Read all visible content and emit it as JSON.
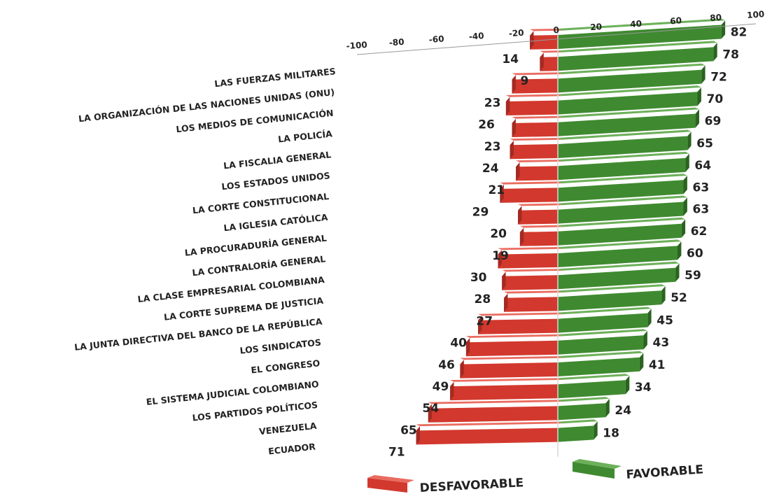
{
  "chart_data": {
    "type": "bar",
    "orientation": "horizontal-diverging",
    "categories": [
      "LAS FUERZAS MILITARES",
      "LA ORGANIZACIÓN DE LAS NACIONES UNIDAS (ONU)",
      "LOS MEDIOS DE COMUNICACIÓN",
      "LA POLICÍA",
      "LA FISCALIA GENERAL",
      "LOS ESTADOS UNIDOS",
      "LA CORTE CONSTITUCIONAL",
      "LA IGLESIA CATÓLICA",
      "LA PROCURADURÍA GENERAL",
      "LA CONTRALORÍA GENERAL",
      "LA CLASE EMPRESARIAL COLOMBIANA",
      "LA CORTE SUPREMA DE JUSTICIA",
      "LA JUNTA DIRECTIVA DEL BANCO DE LA REPÚBLICA",
      "LOS SINDICATOS",
      "EL CONGRESO",
      "EL SISTEMA JUDICIAL COLOMBIANO",
      "LOS PARTIDOS POLÍTICOS",
      "VENEZUELA",
      "ECUADOR"
    ],
    "series": [
      {
        "name": "FAVORABLE",
        "color": "#3d8b2f",
        "values": [
          82,
          78,
          72,
          70,
          69,
          65,
          64,
          63,
          63,
          62,
          60,
          59,
          52,
          45,
          43,
          41,
          34,
          24,
          18
        ]
      },
      {
        "name": "DESFAVORABLE",
        "color": "#d0352b",
        "values": [
          14,
          9,
          23,
          26,
          23,
          24,
          21,
          29,
          20,
          19,
          30,
          28,
          27,
          40,
          46,
          49,
          54,
          65,
          71
        ]
      }
    ],
    "axis": {
      "ticks": [
        "-100",
        "-80",
        "-60",
        "-40",
        "-20",
        "0",
        "20",
        "40",
        "60",
        "80",
        "100"
      ],
      "range": [
        -100,
        100
      ]
    },
    "legend": {
      "items": [
        "DESFAVORABLE",
        "FAVORABLE"
      ],
      "placement": "bottom"
    },
    "grid": false
  }
}
